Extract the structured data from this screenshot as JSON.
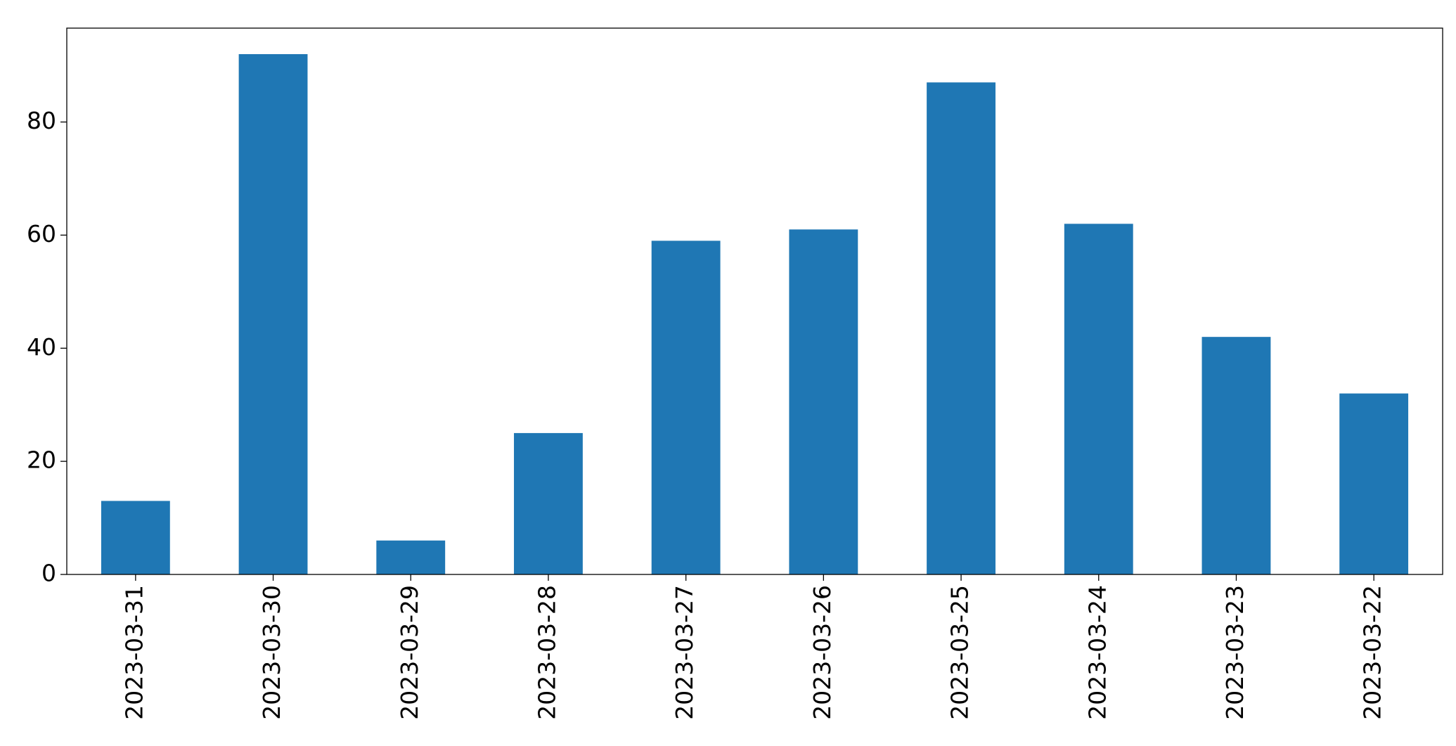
{
  "chart_data": {
    "type": "bar",
    "categories": [
      "2023-03-31",
      "2023-03-30",
      "2023-03-29",
      "2023-03-28",
      "2023-03-27",
      "2023-03-26",
      "2023-03-25",
      "2023-03-24",
      "2023-03-23",
      "2023-03-22"
    ],
    "values": [
      13,
      92,
      6,
      25,
      59,
      61,
      87,
      62,
      42,
      32
    ],
    "color": "#1f77b4",
    "ylim": [
      0,
      96.6
    ],
    "yticks": [
      0,
      20,
      40,
      60,
      80
    ],
    "grid": false
  }
}
